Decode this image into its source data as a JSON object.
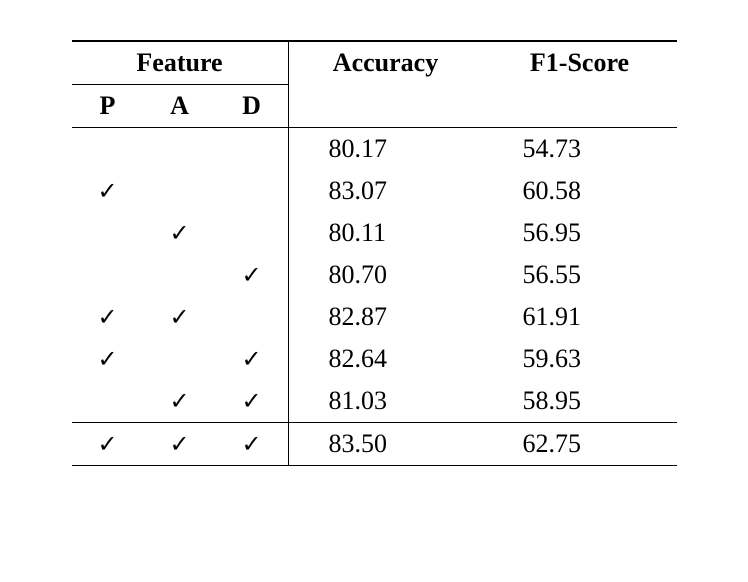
{
  "table": {
    "headers": {
      "feature": "Feature",
      "accuracy": "Accuracy",
      "f1score": "F1-Score",
      "subP": "P",
      "subA": "A",
      "subD": "D"
    },
    "check_symbol": "✓",
    "rows": [
      {
        "p": false,
        "a": false,
        "d": false,
        "accuracy": "80.17",
        "f1": "54.73"
      },
      {
        "p": true,
        "a": false,
        "d": false,
        "accuracy": "83.07",
        "f1": "60.58"
      },
      {
        "p": false,
        "a": true,
        "d": false,
        "accuracy": "80.11",
        "f1": "56.95"
      },
      {
        "p": false,
        "a": false,
        "d": true,
        "accuracy": "80.70",
        "f1": "56.55"
      },
      {
        "p": true,
        "a": true,
        "d": false,
        "accuracy": "82.87",
        "f1": "61.91"
      },
      {
        "p": true,
        "a": false,
        "d": true,
        "accuracy": "82.64",
        "f1": "59.63"
      },
      {
        "p": false,
        "a": true,
        "d": true,
        "accuracy": "81.03",
        "f1": "58.95"
      },
      {
        "p": true,
        "a": true,
        "d": true,
        "accuracy": "83.50",
        "f1": "62.75"
      }
    ],
    "styling": {
      "font_family": "Times New Roman",
      "base_fontsize": 26,
      "check_fontsize": 24,
      "border_color": "#000000",
      "background_color": "#ffffff",
      "top_border_width": 2,
      "mid_border_width": 1,
      "vline_width": 1.5
    }
  }
}
